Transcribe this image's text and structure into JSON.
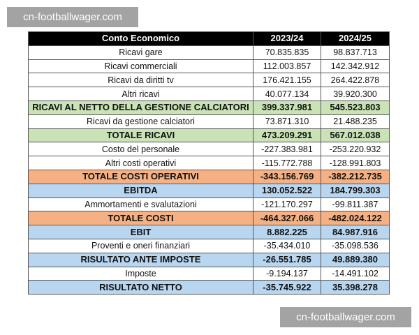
{
  "watermarks": [
    "cn-footballwager.com",
    "cn-footballwager.com"
  ],
  "table": {
    "header": [
      "Conto Economico",
      "2023/24",
      "2024/25"
    ],
    "rows": [
      [
        "Ricavi gare",
        "70.835.835",
        "98.837.713"
      ],
      [
        "Ricavi commerciali",
        "112.003.857",
        "142.342.912"
      ],
      [
        "Ricavi da diritti tv",
        "176.421.155",
        "264.422.878"
      ],
      [
        "Altri ricavi",
        "40.077.134",
        "39.920.300"
      ],
      [
        "RICAVI AL NETTO DELLA GESTIONE CALCIATORI",
        "399.337.981",
        "545.523.803"
      ],
      [
        "Ricavi da gestione calciatori",
        "73.871.310",
        "21.488.235"
      ],
      [
        "TOTALE RICAVI",
        "473.209.291",
        "567.012.038"
      ],
      [
        "Costo del personale",
        "-227.383.981",
        "-253.220.932"
      ],
      [
        "Altri costi operativi",
        "-115.772.788",
        "-128.991.803"
      ],
      [
        "TOTALE COSTI OPERATIVI",
        "-343.156.769",
        "-382.212.735"
      ],
      [
        "EBITDA",
        "130.052.522",
        "184.799.303"
      ],
      [
        "Ammortamenti e svalutazioni",
        "-121.170.297",
        "-99.811.387"
      ],
      [
        "TOTALE COSTI",
        "-464.327.066",
        "-482.024.122"
      ],
      [
        "EBIT",
        "8.882.225",
        "84.987.916"
      ],
      [
        "Proventi e oneri finanziari",
        "-35.434.010",
        "-35.098.536"
      ],
      [
        "RISULTATO ANTE IMPOSTE",
        "-26.551.785",
        "49.889.380"
      ],
      [
        "Imposte",
        "-9.194.137",
        "-14.491.102"
      ],
      [
        "RISULTATO NETTO",
        "-35.745.922",
        "35.398.278"
      ]
    ]
  }
}
